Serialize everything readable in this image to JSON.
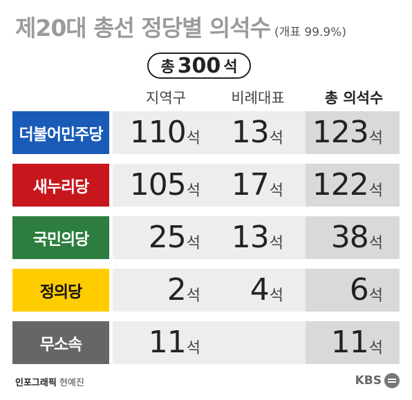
{
  "title": "제20대 총선 정당별 의석수",
  "subtitle": "(개표 99.9%)",
  "total": {
    "label": "총",
    "value": "300",
    "unit": "석"
  },
  "chart_data": {
    "type": "table",
    "columns": [
      "지역구",
      "비례대표",
      "총 의석수"
    ],
    "unit": "석",
    "rows": [
      {
        "party": "더불어민주당",
        "color": "#1a5bb8",
        "text_color": "#ffffff",
        "district": 110,
        "proportional": 13,
        "total": 123
      },
      {
        "party": "새누리당",
        "color": "#c8161d",
        "text_color": "#ffffff",
        "district": 105,
        "proportional": 17,
        "total": 122
      },
      {
        "party": "국민의당",
        "color": "#2c7d3f",
        "text_color": "#ffffff",
        "district": 25,
        "proportional": 13,
        "total": 38
      },
      {
        "party": "정의당",
        "color": "#ffcc00",
        "text_color": "#111111",
        "district": 2,
        "proportional": 4,
        "total": 6
      },
      {
        "party": "무소속",
        "color": "#666666",
        "text_color": "#ffffff",
        "district": 11,
        "proportional": null,
        "total": 11
      }
    ]
  },
  "footer": {
    "credit_label": "인포그래픽",
    "credit_name": "현예진",
    "brand": "KBS"
  }
}
